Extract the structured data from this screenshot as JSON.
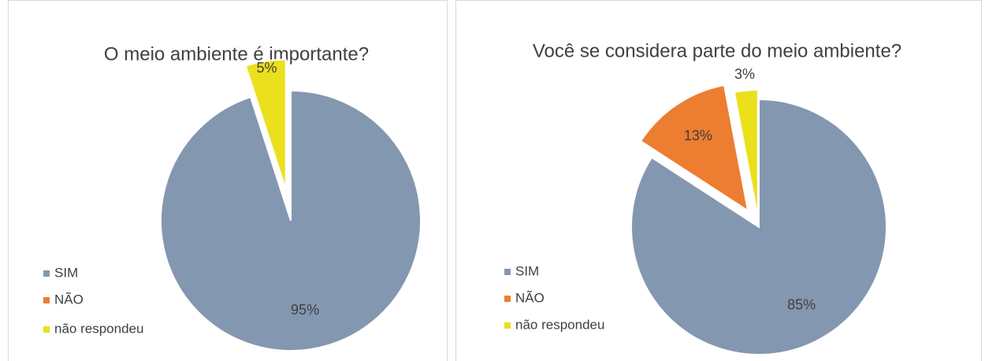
{
  "chart_data": [
    {
      "type": "pie",
      "title": "O meio ambiente é importante?",
      "categories": [
        "SIM",
        "NÃO",
        "não respondeu"
      ],
      "values": [
        95,
        0,
        5
      ],
      "value_labels": [
        "95%",
        null,
        "5%"
      ],
      "colors": [
        "#8497b0",
        "#ed7d31",
        "#ebe01c"
      ],
      "legend": "left"
    },
    {
      "type": "pie",
      "title": "Você se considera parte do meio ambiente?",
      "categories": [
        "SIM",
        "NÃO",
        "não respondeu"
      ],
      "values": [
        85,
        13,
        3
      ],
      "value_labels": [
        "85%",
        "13%",
        "3%"
      ],
      "colors": [
        "#8497b0",
        "#ed7d31",
        "#ebe01c"
      ],
      "legend": "left"
    }
  ]
}
